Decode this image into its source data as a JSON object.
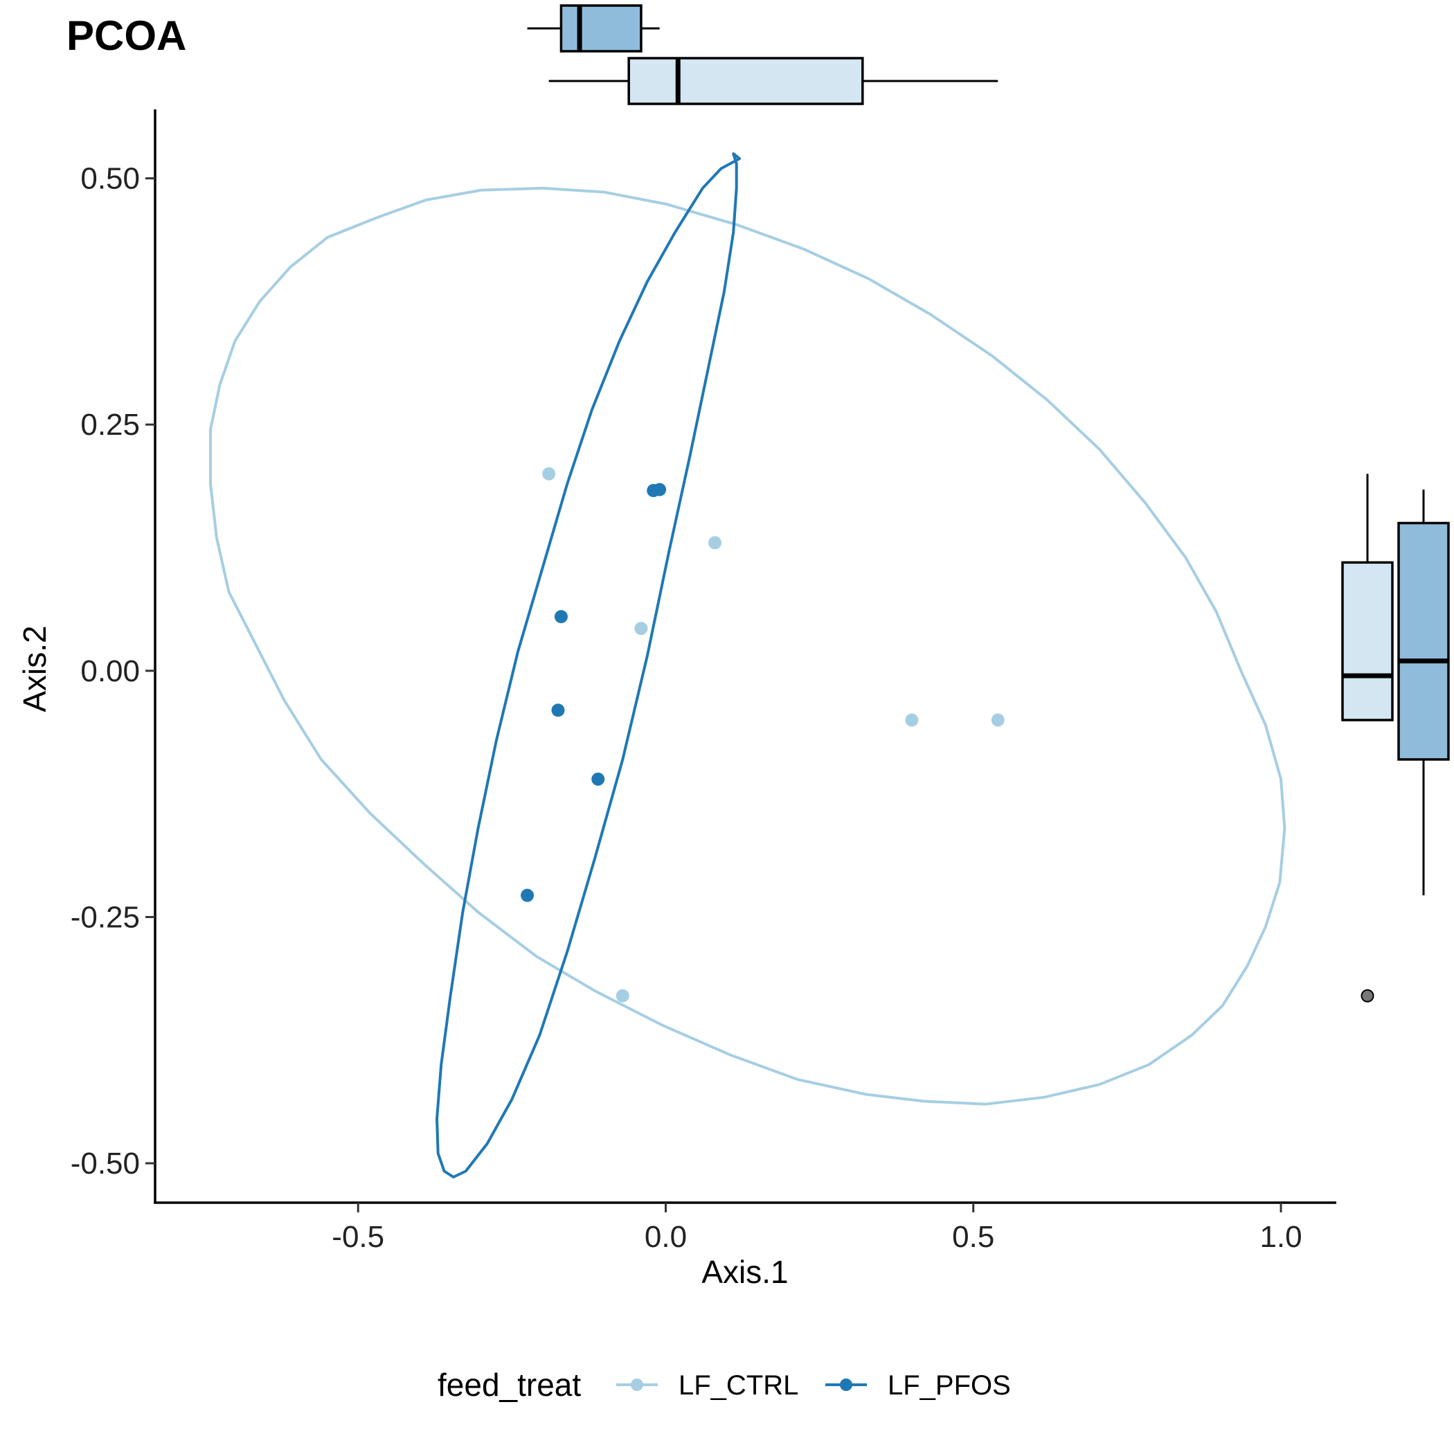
{
  "chart_data": {
    "type": "scatter",
    "title": "PCOA",
    "xlabel": "Axis.1",
    "ylabel": "Axis.2",
    "xlim": [
      -0.83,
      1.09
    ],
    "ylim": [
      -0.54,
      0.57
    ],
    "x_ticks": [
      "-0.5",
      "0.0",
      "0.5",
      "1.0"
    ],
    "x_tick_values": [
      -0.5,
      0.0,
      0.5,
      1.0
    ],
    "y_ticks": [
      "0.50",
      "0.25",
      "0.00",
      "-0.25",
      "-0.50"
    ],
    "y_tick_values": [
      0.5,
      0.25,
      0.0,
      -0.25,
      -0.5
    ],
    "grid": false,
    "legend": {
      "title": "feed_treat",
      "position": "bottom",
      "entries": [
        "LF_CTRL",
        "LF_PFOS"
      ]
    },
    "series": [
      {
        "name": "LF_CTRL",
        "color": "#a6cee3",
        "x": [
          -0.19,
          0.08,
          -0.04,
          0.4,
          0.54,
          -0.07
        ],
        "y": [
          0.2,
          0.13,
          0.043,
          -0.05,
          -0.05,
          -0.33
        ],
        "ellipse": [
          [
            -0.2,
            0.49
          ],
          [
            -0.3,
            0.488
          ],
          [
            -0.39,
            0.478
          ],
          [
            -0.47,
            0.46
          ],
          [
            -0.55,
            0.44
          ],
          [
            -0.61,
            0.41
          ],
          [
            -0.66,
            0.375
          ],
          [
            -0.7,
            0.335
          ],
          [
            -0.725,
            0.29
          ],
          [
            -0.74,
            0.245
          ],
          [
            -0.74,
            0.19
          ],
          [
            -0.73,
            0.135
          ],
          [
            -0.71,
            0.08
          ],
          [
            -0.665,
            0.025
          ],
          [
            -0.62,
            -0.03
          ],
          [
            -0.56,
            -0.09
          ],
          [
            -0.48,
            -0.145
          ],
          [
            -0.395,
            -0.195
          ],
          [
            -0.305,
            -0.245
          ],
          [
            -0.21,
            -0.29
          ],
          [
            -0.115,
            -0.325
          ],
          [
            -0.005,
            -0.36
          ],
          [
            0.105,
            -0.39
          ],
          [
            0.215,
            -0.415
          ],
          [
            0.325,
            -0.43
          ],
          [
            0.42,
            -0.437
          ],
          [
            0.52,
            -0.44
          ],
          [
            0.615,
            -0.433
          ],
          [
            0.705,
            -0.42
          ],
          [
            0.785,
            -0.4
          ],
          [
            0.855,
            -0.37
          ],
          [
            0.905,
            -0.34
          ],
          [
            0.945,
            -0.3
          ],
          [
            0.975,
            -0.26
          ],
          [
            0.998,
            -0.215
          ],
          [
            1.006,
            -0.16
          ],
          [
            1.0,
            -0.11
          ],
          [
            0.975,
            -0.055
          ],
          [
            0.935,
            0.0
          ],
          [
            0.895,
            0.06
          ],
          [
            0.845,
            0.115
          ],
          [
            0.78,
            0.17
          ],
          [
            0.705,
            0.225
          ],
          [
            0.62,
            0.275
          ],
          [
            0.53,
            0.32
          ],
          [
            0.43,
            0.362
          ],
          [
            0.33,
            0.398
          ],
          [
            0.225,
            0.428
          ],
          [
            0.115,
            0.453
          ],
          [
            0.0,
            0.474
          ],
          [
            -0.1,
            0.486
          ],
          [
            -0.2,
            0.49
          ]
        ]
      },
      {
        "name": "LF_PFOS",
        "color": "#1f78b4",
        "x": [
          -0.02,
          -0.01,
          -0.17,
          -0.175,
          -0.11,
          -0.225
        ],
        "y": [
          0.183,
          0.184,
          0.055,
          -0.04,
          -0.11,
          -0.228
        ],
        "ellipse": [
          [
            0.12,
            0.52
          ],
          [
            0.09,
            0.51
          ],
          [
            0.06,
            0.49
          ],
          [
            0.015,
            0.445
          ],
          [
            -0.03,
            0.395
          ],
          [
            -0.075,
            0.335
          ],
          [
            -0.12,
            0.265
          ],
          [
            -0.16,
            0.19
          ],
          [
            -0.2,
            0.105
          ],
          [
            -0.24,
            0.02
          ],
          [
            -0.275,
            -0.07
          ],
          [
            -0.305,
            -0.16
          ],
          [
            -0.33,
            -0.245
          ],
          [
            -0.35,
            -0.33
          ],
          [
            -0.365,
            -0.4
          ],
          [
            -0.372,
            -0.455
          ],
          [
            -0.37,
            -0.49
          ],
          [
            -0.36,
            -0.508
          ],
          [
            -0.345,
            -0.514
          ],
          [
            -0.325,
            -0.508
          ],
          [
            -0.29,
            -0.48
          ],
          [
            -0.25,
            -0.435
          ],
          [
            -0.205,
            -0.37
          ],
          [
            -0.16,
            -0.285
          ],
          [
            -0.115,
            -0.19
          ],
          [
            -0.07,
            -0.09
          ],
          [
            -0.03,
            0.015
          ],
          [
            0.005,
            0.12
          ],
          [
            0.04,
            0.22
          ],
          [
            0.07,
            0.31
          ],
          [
            0.095,
            0.385
          ],
          [
            0.11,
            0.445
          ],
          [
            0.115,
            0.49
          ],
          [
            0.115,
            0.515
          ],
          [
            0.11,
            0.525
          ],
          [
            0.12,
            0.52
          ]
        ]
      }
    ],
    "boxplot_x": [
      {
        "group": "LF_PFOS",
        "color": "#8fbcdb",
        "whisker_low": -0.225,
        "q1": -0.17,
        "median": -0.14,
        "q3": -0.04,
        "whisker_high": -0.01
      },
      {
        "group": "LF_CTRL",
        "color": "#d3e6f1",
        "whisker_low": -0.19,
        "q1": -0.06,
        "median": 0.02,
        "q3": 0.32,
        "whisker_high": 0.54
      }
    ],
    "boxplot_y": [
      {
        "group": "LF_CTRL",
        "color": "#d3e6f1",
        "whisker_low": -0.05,
        "q1": -0.05,
        "median": -0.005,
        "q3": 0.11,
        "whisker_high": 0.2,
        "outliers": [
          -0.33
        ]
      },
      {
        "group": "LF_PFOS",
        "color": "#8fbcdb",
        "whisker_low": -0.228,
        "q1": -0.09,
        "median": 0.01,
        "q3": 0.15,
        "whisker_high": 0.184,
        "outliers": []
      }
    ],
    "outlier_color": "#777777"
  }
}
